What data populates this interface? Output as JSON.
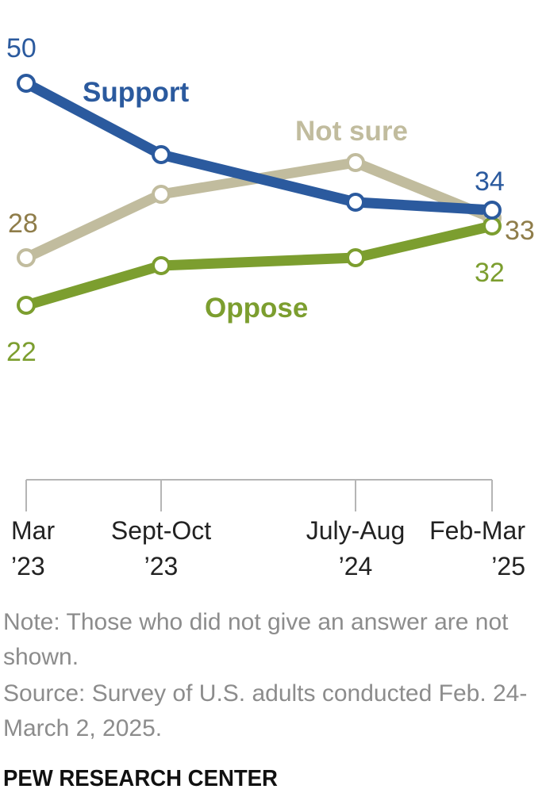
{
  "chart_data": {
    "type": "line",
    "categories": [
      [
        "Mar",
        "’23"
      ],
      [
        "Sept-Oct",
        "’23"
      ],
      [
        "July-Aug",
        "’24"
      ],
      [
        "Feb-Mar",
        "’25"
      ]
    ],
    "series": [
      {
        "name": "Support",
        "color": "#2b5a9e",
        "values": [
          50,
          41,
          35,
          34
        ],
        "value_labels": [
          "50",
          "",
          "",
          "34"
        ]
      },
      {
        "name": "Not sure",
        "color": "#c1bc9e",
        "values": [
          28,
          36,
          40,
          33
        ],
        "value_labels": [
          "28",
          "",
          "",
          "33"
        ]
      },
      {
        "name": "Oppose",
        "color": "#7c9e2f",
        "values": [
          22,
          27,
          28,
          32
        ],
        "value_labels": [
          "22",
          "",
          "",
          "32"
        ]
      }
    ],
    "end_label_colors": {
      "Support": "#2b5a9e",
      "Not sure": "#8f7d4a",
      "Oppose": "#7c9e2f"
    },
    "ylim": [
      22,
      50
    ],
    "title": "",
    "xlabel": "",
    "ylabel": ""
  },
  "footer": {
    "note": "Note: Those who did not give an answer are not shown.",
    "source": "Source: Survey of U.S. adults conducted Feb. 24-March 2, 2025.",
    "brand": "PEW RESEARCH CENTER"
  }
}
